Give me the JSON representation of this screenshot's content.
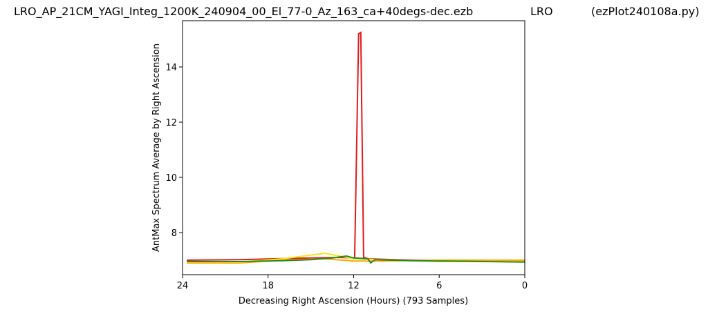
{
  "chart_data": {
    "type": "line",
    "title": "LRO_AP_21CM_YAGI_Integ_1200K_240904_00_El_77-0_Az_163_ca+40degs-dec.ezb",
    "subtitle": "LRO",
    "annotation": "(ezPlot240108a.py)",
    "xlabel": "Decreasing Right Ascension (Hours) (793 Samples)",
    "ylabel": "AntMax Spectrum Average by Right Ascension",
    "xlim": [
      24,
      0
    ],
    "xticks": [
      24,
      18,
      12,
      6,
      0
    ],
    "ylim": [
      6.475,
      15.675
    ],
    "yticks": [
      8,
      10,
      12,
      14
    ],
    "series": [
      {
        "name": "red",
        "color": "#e41a1c",
        "x": [
          23.7,
          20,
          16,
          13,
          12,
          11.93,
          11.65,
          11.5,
          11.3,
          11,
          8,
          4,
          0
        ],
        "values": [
          7.0,
          7.02,
          7.07,
          7.1,
          7.08,
          7.1,
          15.2,
          15.25,
          7.1,
          7.05,
          7.0,
          6.97,
          6.95
        ]
      },
      {
        "name": "orange",
        "color": "#ffa500",
        "x": [
          23.7,
          20,
          17,
          14,
          12,
          10,
          6,
          3,
          0
        ],
        "values": [
          6.9,
          6.9,
          7.0,
          7.05,
          6.97,
          6.97,
          7.0,
          7.0,
          7.0
        ]
      },
      {
        "name": "yellow",
        "color": "#f5e616",
        "x": [
          23.7,
          20,
          17,
          14,
          12,
          9,
          6,
          3,
          0
        ],
        "values": [
          6.93,
          6.93,
          7.05,
          7.25,
          7.05,
          7.0,
          6.95,
          6.95,
          6.95
        ]
      },
      {
        "name": "green",
        "color": "#228b22",
        "x": [
          23.7,
          20,
          17,
          15,
          13.5,
          12.5,
          12,
          11,
          10.8,
          10.5,
          8,
          4,
          0
        ],
        "values": [
          6.95,
          6.95,
          6.98,
          7.02,
          7.08,
          7.15,
          7.08,
          7.05,
          6.9,
          7.02,
          6.98,
          6.96,
          6.93
        ]
      }
    ]
  }
}
